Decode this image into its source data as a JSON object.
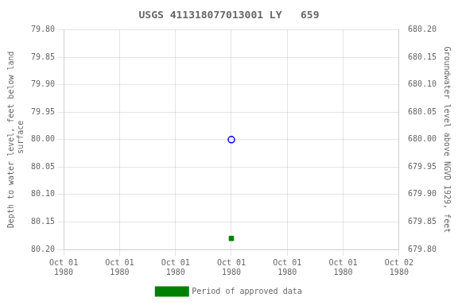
{
  "chart_data": {
    "type": "scatter",
    "title": "USGS 411318077013001 LY   659",
    "y_label": "Depth to water level, feet below land\n surface",
    "y2_label": "Groundwater level above NGVD 1929, feet",
    "categories": [
      "Oct 01\n1980",
      "Oct 01\n1980",
      "Oct 01\n1980",
      "Oct 01\n1980",
      "Oct 01\n1980",
      "Oct 01\n1980",
      "Oct 02\n1980"
    ],
    "series": [
      {
        "color": "#0000ff",
        "marker": "open circle",
        "values": [
          null,
          null,
          null,
          80.0,
          null,
          null,
          null
        ]
      },
      {
        "name": "Period of approved data",
        "color": "#008000",
        "marker": "square",
        "values": [
          null,
          null,
          null,
          80.18,
          null,
          null,
          null
        ]
      }
    ],
    "ylim": [
      80.2,
      79.8
    ],
    "yticks": [
      {
        "value": 79.8,
        "label": "79.80"
      },
      {
        "value": 79.85,
        "label": "79.85"
      },
      {
        "value": 79.9,
        "label": "79.90"
      },
      {
        "value": 79.95,
        "label": "79.95"
      },
      {
        "value": 80.0,
        "label": "80.00"
      },
      {
        "value": 80.05,
        "label": "80.05"
      },
      {
        "value": 80.1,
        "label": "80.10"
      },
      {
        "value": 80.15,
        "label": "80.15"
      },
      {
        "value": 80.2,
        "label": "80.20"
      }
    ],
    "y2lim": [
      679.8,
      680.2
    ],
    "y2ticks": [
      {
        "value": 679.8,
        "label": "679.80"
      },
      {
        "value": 679.85,
        "label": "679.85"
      },
      {
        "value": 679.9,
        "label": "679.90"
      },
      {
        "value": 679.95,
        "label": "679.95"
      },
      {
        "value": 680.0,
        "label": "680.00"
      },
      {
        "value": 680.05,
        "label": "680.05"
      },
      {
        "value": 680.1,
        "label": "680.10"
      },
      {
        "value": 680.15,
        "label": "680.15"
      },
      {
        "value": 680.2,
        "label": "680.20"
      }
    ],
    "grid": true,
    "legend": "bottom"
  }
}
